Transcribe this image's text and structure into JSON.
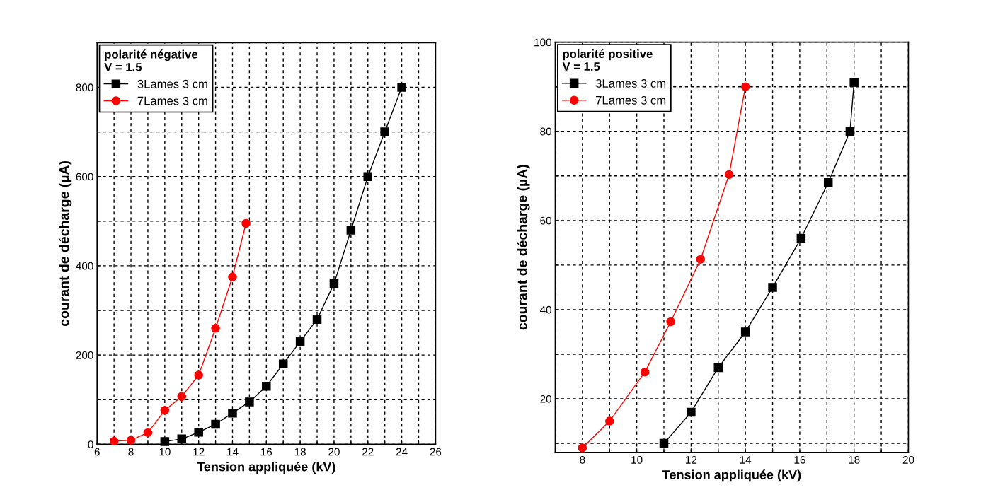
{
  "chart_data": [
    {
      "type": "line",
      "legend_title": "polarité négative\nV = 1.5",
      "xlabel": "Tension appliquée (kV)",
      "ylabel": "courant de décharge (µA)",
      "xlim": [
        6,
        26
      ],
      "ylim": [
        0,
        900
      ],
      "xticks": [
        6,
        {
          "value": 7,
          "label": null
        },
        8,
        {
          "value": 9,
          "label": null
        },
        10,
        {
          "value": 11,
          "label": null
        },
        12,
        {
          "value": 13,
          "label": null
        },
        14,
        {
          "value": 15,
          "label": null
        },
        16,
        {
          "value": 17,
          "label": null
        },
        18,
        {
          "value": 19,
          "label": null
        },
        20,
        {
          "value": 21,
          "label": null
        },
        22,
        {
          "value": 23,
          "label": null
        },
        24,
        {
          "value": 25,
          "label": null
        },
        26
      ],
      "yticks": [
        0,
        {
          "value": 100,
          "label": null
        },
        200,
        {
          "value": 300,
          "label": null
        },
        400,
        {
          "value": 500,
          "label": null
        },
        600,
        {
          "value": 700,
          "label": null
        },
        800
      ],
      "grid": true,
      "legend": "top left",
      "line_style": "solid",
      "series": [
        {
          "name": "3Lames 3 cm",
          "color": "#000000",
          "marker": "square",
          "x": [
            10,
            11,
            12,
            13,
            14,
            15,
            16,
            17,
            18,
            19,
            20,
            21,
            22,
            23,
            24
          ],
          "values": [
            6,
            12,
            27,
            45,
            70,
            95,
            130,
            180,
            230,
            280,
            360,
            480,
            600,
            700,
            800
          ]
        },
        {
          "name": "7Lames 3 cm",
          "color": "#ff0000",
          "marker": "circle",
          "x": [
            7,
            8,
            9,
            10,
            11,
            12,
            13,
            14,
            14.8
          ],
          "values": [
            7,
            9,
            26,
            76,
            107,
            155,
            260,
            375,
            495
          ]
        }
      ]
    },
    {
      "type": "line",
      "legend_title": "polarité positive\nV = 1.5",
      "xlabel": "Tension appliquée (kV)",
      "ylabel": "courant de décharge (µA)",
      "xlim": [
        7,
        20
      ],
      "ylim": [
        8,
        100
      ],
      "xticks": [
        {
          "value": 7,
          "label": null
        },
        8,
        {
          "value": 9,
          "label": null
        },
        10,
        {
          "value": 11,
          "label": null
        },
        12,
        {
          "value": 13,
          "label": null
        },
        14,
        {
          "value": 15,
          "label": null
        },
        16,
        {
          "value": 17,
          "label": null
        },
        18,
        {
          "value": 19,
          "label": null
        },
        20
      ],
      "yticks": [
        {
          "value": 10,
          "label": null
        },
        20,
        {
          "value": 30,
          "label": null
        },
        40,
        {
          "value": 50,
          "label": null
        },
        60,
        {
          "value": 70,
          "label": null
        },
        80,
        {
          "value": 90,
          "label": null
        },
        100
      ],
      "grid": true,
      "legend": "top left",
      "line_style": "solid",
      "series": [
        {
          "name": "3Lames 3 cm",
          "color": "#000000",
          "marker": "square",
          "x": [
            11,
            12,
            13,
            14,
            15,
            16.05,
            17.05,
            17.85,
            18
          ],
          "values": [
            10,
            17,
            27,
            35,
            45,
            56,
            68.5,
            80,
            91
          ]
        },
        {
          "name": "7Lames 3 cm",
          "color": "#ff0000",
          "marker": "circle",
          "x": [
            8,
            9,
            10.3,
            11.25,
            12.35,
            13.4,
            14
          ],
          "values": [
            9,
            15,
            26,
            37.3,
            51.3,
            70.3,
            90
          ]
        }
      ]
    }
  ]
}
